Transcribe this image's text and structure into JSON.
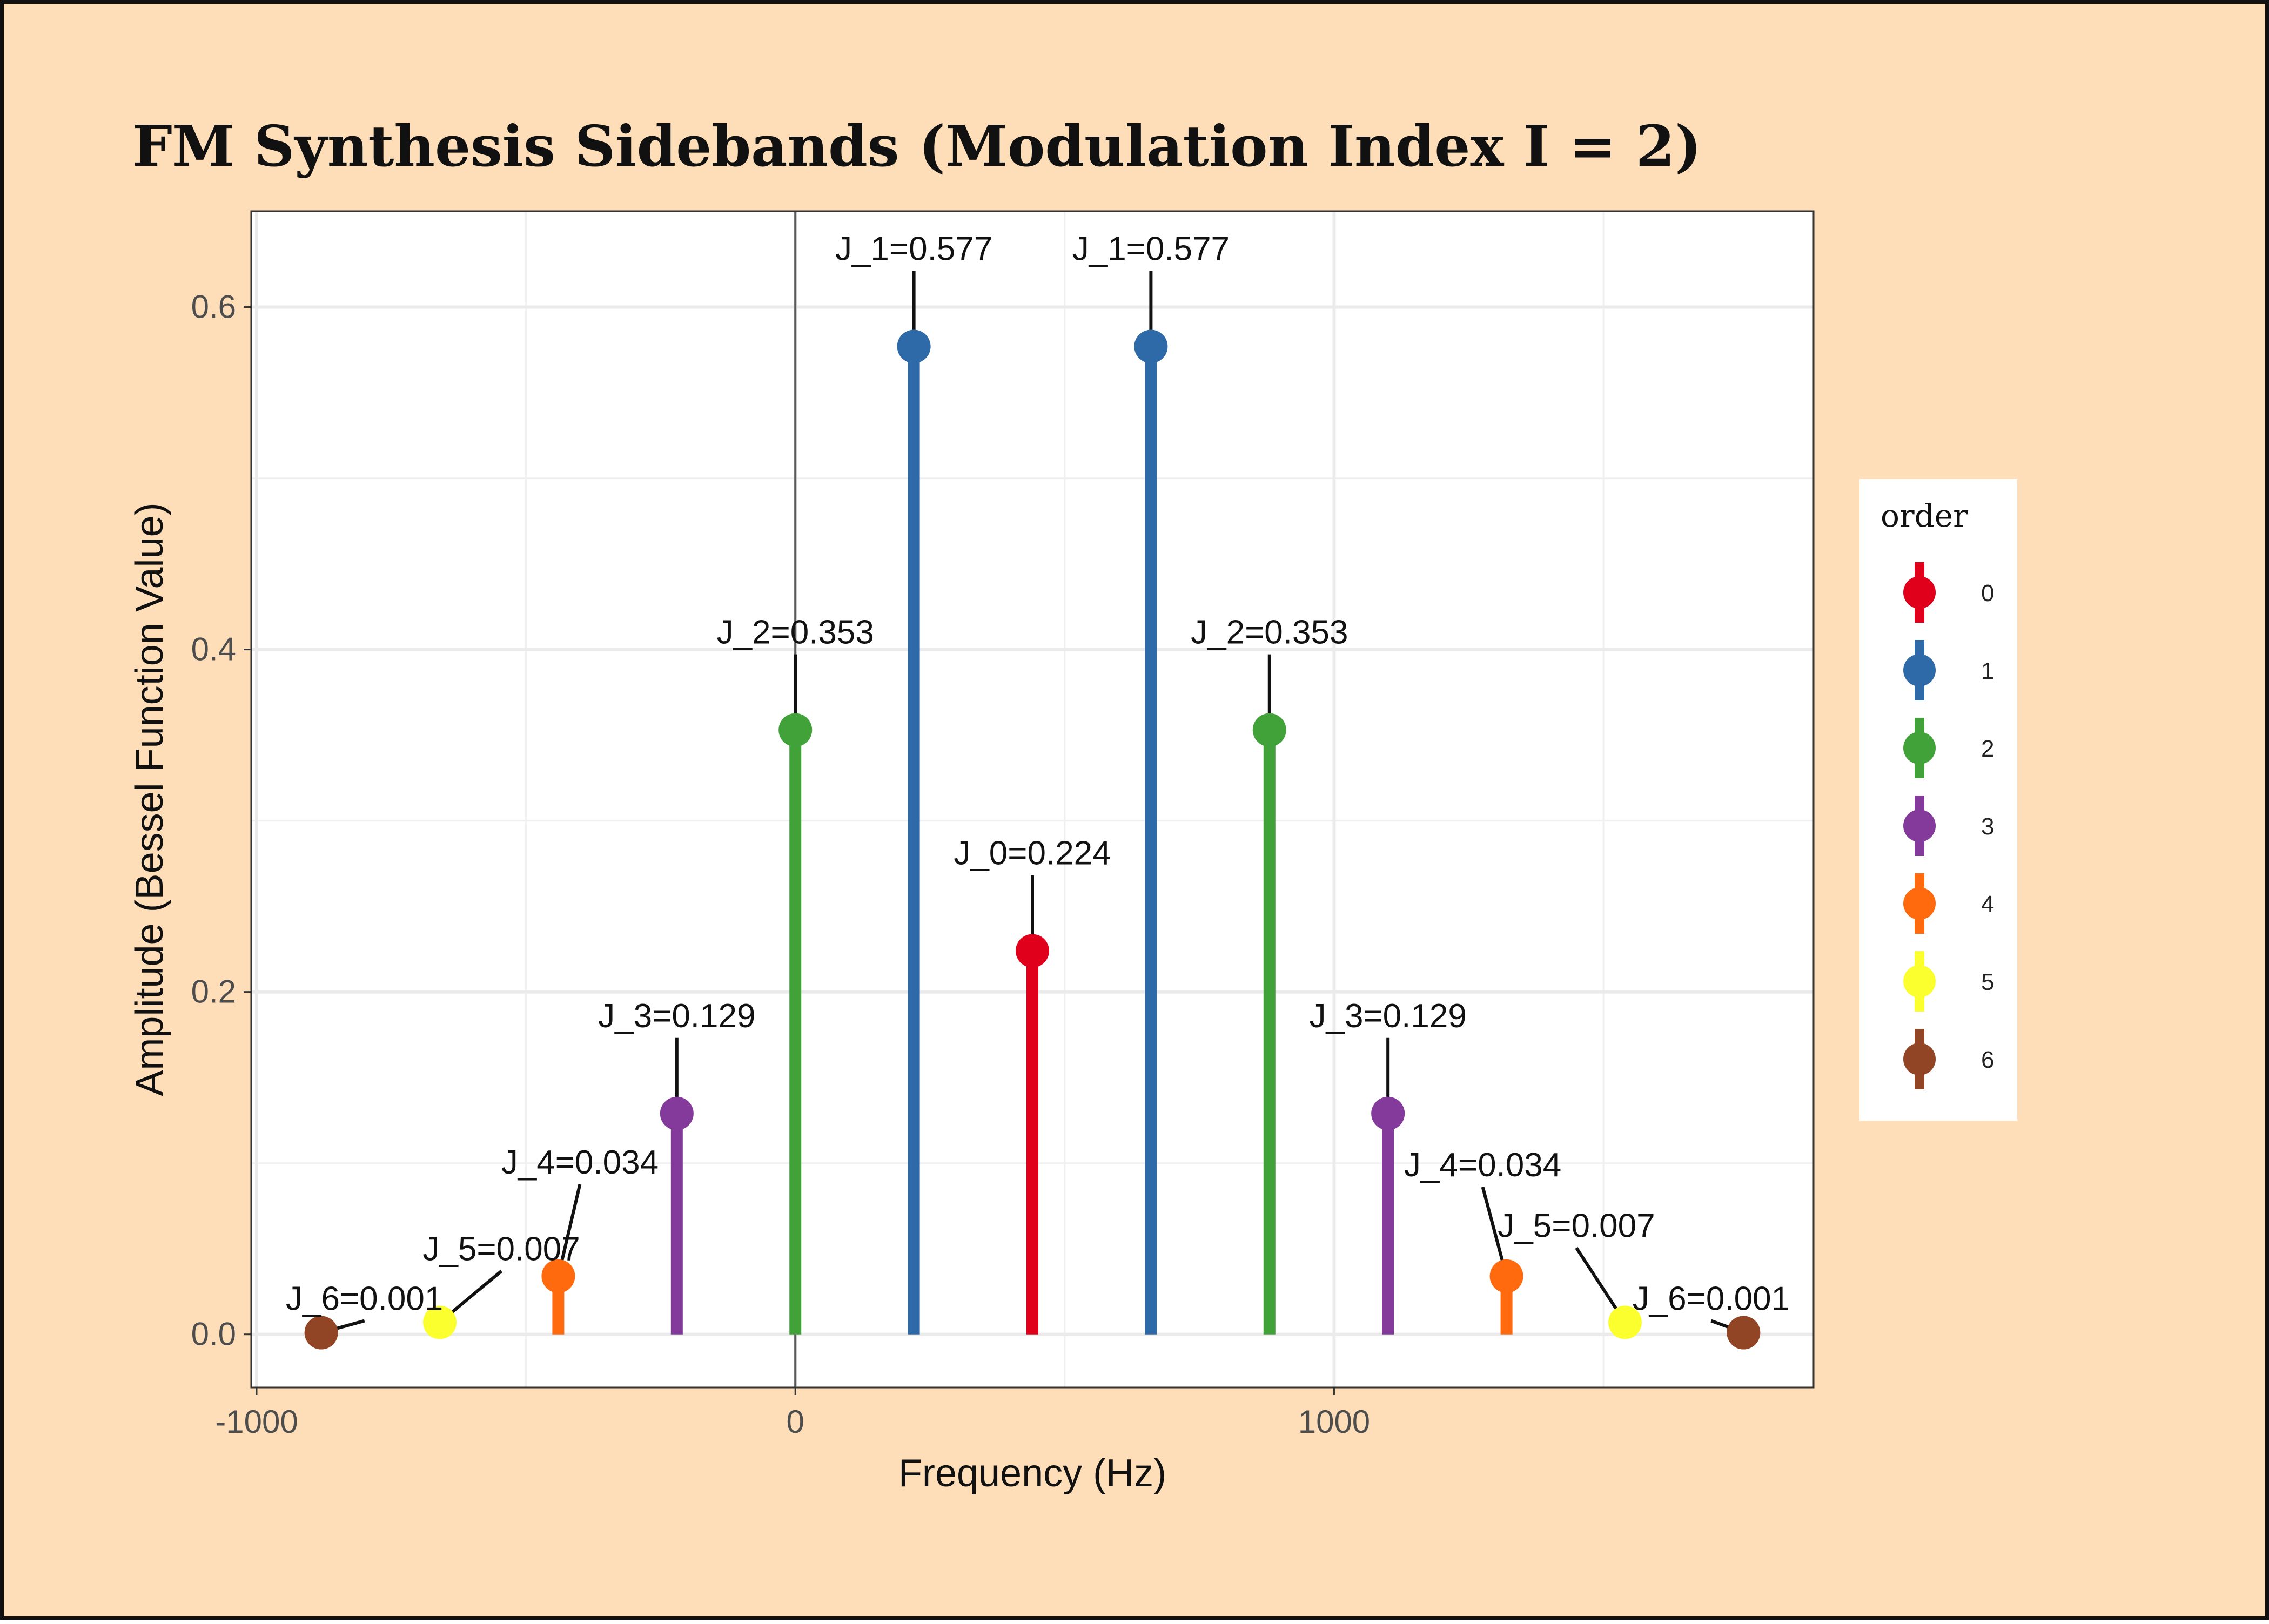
{
  "chart_data": {
    "type": "stem",
    "title": "FM Synthesis Sidebands (Modulation Index I = 2)",
    "xlabel": "Frequency (Hz)",
    "ylabel": "Amplitude (Bessel Function Value)",
    "xlim": [
      -1010,
      1890
    ],
    "ylim": [
      -0.031,
      0.656
    ],
    "x_ticks": [
      -1000,
      0,
      1000
    ],
    "x_tick_labels": [
      "-1000",
      "0",
      "1000"
    ],
    "y_ticks": [
      0.0,
      0.2,
      0.4,
      0.6
    ],
    "y_tick_labels": [
      "0.0",
      "0.2",
      "0.4",
      "0.6"
    ],
    "grid": true,
    "vertical_reference_line": 0,
    "legend": {
      "title": "order",
      "position": "right",
      "items": [
        {
          "label": "0",
          "color": "#e0001b"
        },
        {
          "label": "1",
          "color": "#2e6aa8"
        },
        {
          "label": "2",
          "color": "#42a23a"
        },
        {
          "label": "3",
          "color": "#833a9a"
        },
        {
          "label": "4",
          "color": "#ff6a0e"
        },
        {
          "label": "5",
          "color": "#fbff2e"
        },
        {
          "label": "6",
          "color": "#914524"
        }
      ]
    },
    "points": [
      {
        "order": 6,
        "x": -880,
        "y": 0.001,
        "label": "J_6=0.001"
      },
      {
        "order": 5,
        "x": -660,
        "y": 0.007,
        "label": "J_5=0.007"
      },
      {
        "order": 4,
        "x": -440,
        "y": 0.034,
        "label": "J_4=0.034"
      },
      {
        "order": 3,
        "x": -220,
        "y": 0.129,
        "label": "J_3=0.129"
      },
      {
        "order": 2,
        "x": 0,
        "y": 0.353,
        "label": "J_2=0.353"
      },
      {
        "order": 1,
        "x": 220,
        "y": 0.577,
        "label": "J_1=0.577"
      },
      {
        "order": 0,
        "x": 440,
        "y": 0.224,
        "label": "J_0=0.224"
      },
      {
        "order": 1,
        "x": 660,
        "y": 0.577,
        "label": "J_1=0.577"
      },
      {
        "order": 2,
        "x": 880,
        "y": 0.353,
        "label": "J_2=0.353"
      },
      {
        "order": 3,
        "x": 1100,
        "y": 0.129,
        "label": "J_3=0.129"
      },
      {
        "order": 4,
        "x": 1320,
        "y": 0.034,
        "label": "J_4=0.034"
      },
      {
        "order": 5,
        "x": 1540,
        "y": 0.007,
        "label": "J_5=0.007"
      },
      {
        "order": 6,
        "x": 1760,
        "y": 0.001,
        "label": "J_6=0.001"
      }
    ]
  }
}
